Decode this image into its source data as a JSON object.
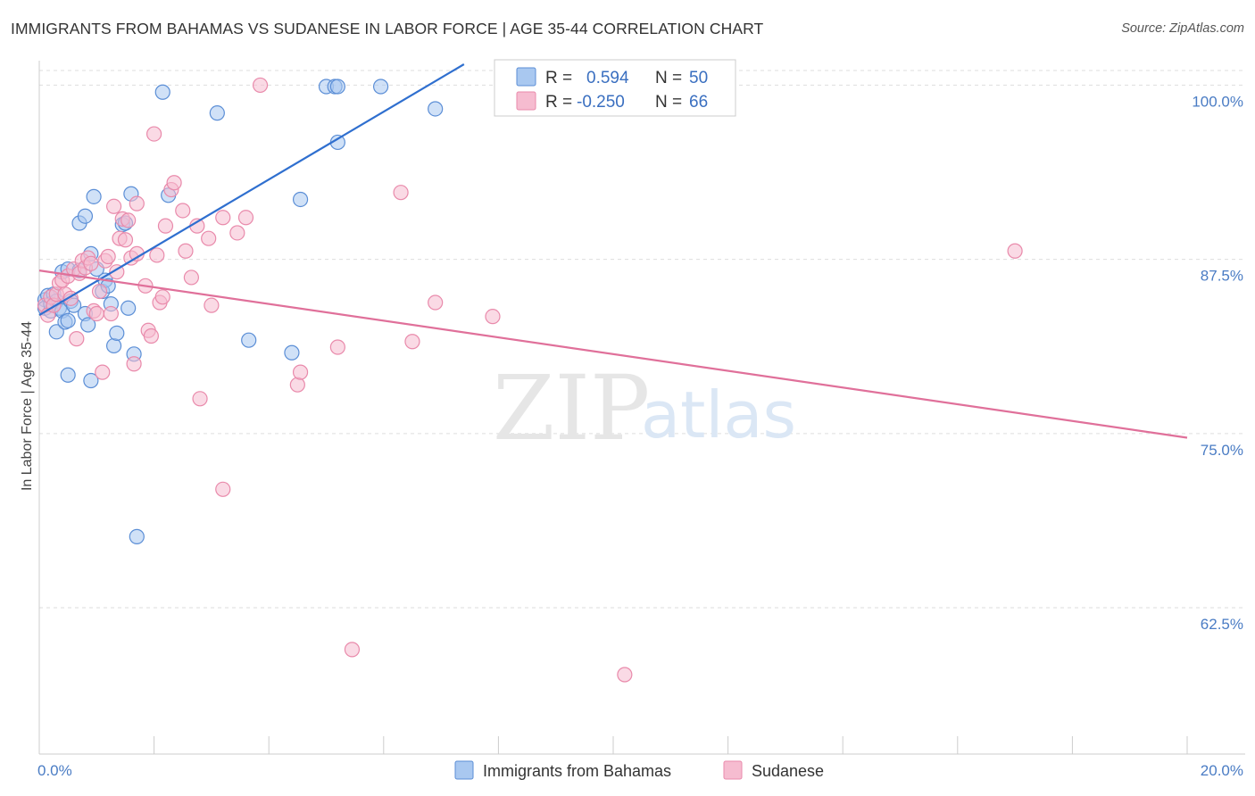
{
  "title": "IMMIGRANTS FROM BAHAMAS VS SUDANESE IN LABOR FORCE | AGE 35-44 CORRELATION CHART",
  "source": "Source: ZipAtlas.com",
  "watermark": {
    "zip": "ZIP",
    "atlas": "atlas"
  },
  "colors": {
    "blue_fill": "#a9c8f0",
    "blue_stroke": "#5b8ed6",
    "blue_line": "#2f6fcf",
    "pink_fill": "#f6bcd0",
    "pink_stroke": "#e98aab",
    "pink_line": "#e0709a",
    "grid": "#dddddd",
    "axis_text": "#4a7cc4"
  },
  "legend": {
    "rows": [
      {
        "r_label": "R =",
        "r_value": "0.594",
        "n_label": "N =",
        "n_value": "50"
      },
      {
        "r_label": "R =",
        "r_value": "-0.250",
        "n_label": "N =",
        "n_value": "66"
      }
    ]
  },
  "chart_data": {
    "type": "scatter",
    "ylabel": "In Labor Force | Age 35-44",
    "xlim": [
      0,
      20
    ],
    "ylim": [
      52,
      101.5
    ],
    "x_tick_labels": [
      "0.0%",
      "20.0%"
    ],
    "y_ticks": [
      62.5,
      75.0,
      87.5,
      100.0
    ],
    "y_tick_labels": [
      "62.5%",
      "75.0%",
      "87.5%",
      "100.0%"
    ],
    "grid": true,
    "legend_position": "top-center",
    "series": [
      {
        "name": "Immigrants from Bahamas",
        "color": "#a9c8f0",
        "trendline": {
          "x": [
            0,
            7.4
          ],
          "y": [
            83.5,
            101.5
          ]
        },
        "points": [
          [
            0.1,
            84.6
          ],
          [
            0.1,
            84.0
          ],
          [
            0.15,
            84.9
          ],
          [
            0.2,
            83.8
          ],
          [
            0.2,
            84.3
          ],
          [
            0.25,
            85.0
          ],
          [
            0.3,
            82.3
          ],
          [
            0.3,
            84.5
          ],
          [
            0.35,
            84.0
          ],
          [
            0.4,
            83.8
          ],
          [
            0.4,
            86.6
          ],
          [
            0.45,
            83.0
          ],
          [
            0.5,
            86.8
          ],
          [
            0.5,
            83.1
          ],
          [
            0.55,
            84.5
          ],
          [
            0.6,
            84.2
          ],
          [
            0.5,
            79.2
          ],
          [
            0.9,
            78.8
          ],
          [
            0.7,
            86.7
          ],
          [
            0.7,
            90.1
          ],
          [
            0.8,
            90.6
          ],
          [
            0.8,
            83.6
          ],
          [
            0.85,
            82.8
          ],
          [
            0.9,
            87.9
          ],
          [
            1.0,
            86.8
          ],
          [
            1.1,
            85.2
          ],
          [
            1.15,
            86.0
          ],
          [
            1.2,
            85.6
          ],
          [
            1.25,
            84.3
          ],
          [
            0.95,
            92.0
          ],
          [
            1.3,
            81.3
          ],
          [
            1.35,
            82.2
          ],
          [
            1.45,
            90.0
          ],
          [
            1.5,
            90.1
          ],
          [
            1.55,
            84.0
          ],
          [
            1.6,
            92.2
          ],
          [
            1.65,
            80.7
          ],
          [
            1.7,
            67.6
          ],
          [
            2.15,
            99.5
          ],
          [
            2.25,
            92.1
          ],
          [
            3.1,
            98.0
          ],
          [
            3.65,
            81.7
          ],
          [
            4.4,
            80.8
          ],
          [
            4.55,
            91.8
          ],
          [
            5.0,
            99.9
          ],
          [
            5.15,
            99.9
          ],
          [
            5.2,
            99.9
          ],
          [
            5.2,
            95.9
          ],
          [
            5.95,
            99.9
          ],
          [
            6.9,
            98.3
          ]
        ]
      },
      {
        "name": "Sudanese",
        "color": "#f6bcd0",
        "trendline": {
          "x": [
            0,
            20
          ],
          "y": [
            86.7,
            74.7
          ]
        },
        "points": [
          [
            0.1,
            84.2
          ],
          [
            0.15,
            83.5
          ],
          [
            0.2,
            84.8
          ],
          [
            0.25,
            84.2
          ],
          [
            0.3,
            85.0
          ],
          [
            0.35,
            85.8
          ],
          [
            0.4,
            86.0
          ],
          [
            0.45,
            85.0
          ],
          [
            0.5,
            86.3
          ],
          [
            0.55,
            84.7
          ],
          [
            0.6,
            86.8
          ],
          [
            0.65,
            81.8
          ],
          [
            0.7,
            86.5
          ],
          [
            0.75,
            87.4
          ],
          [
            0.8,
            86.9
          ],
          [
            0.85,
            87.6
          ],
          [
            0.9,
            87.2
          ],
          [
            0.95,
            83.8
          ],
          [
            1.0,
            83.6
          ],
          [
            1.05,
            85.2
          ],
          [
            1.1,
            79.4
          ],
          [
            1.15,
            87.4
          ],
          [
            1.2,
            87.7
          ],
          [
            1.25,
            83.6
          ],
          [
            1.3,
            91.3
          ],
          [
            1.35,
            86.6
          ],
          [
            1.4,
            89.0
          ],
          [
            1.45,
            90.4
          ],
          [
            1.5,
            88.9
          ],
          [
            1.55,
            90.3
          ],
          [
            1.6,
            87.6
          ],
          [
            1.65,
            80.0
          ],
          [
            1.7,
            87.9
          ],
          [
            1.7,
            91.5
          ],
          [
            1.85,
            85.6
          ],
          [
            1.9,
            82.4
          ],
          [
            1.95,
            82.0
          ],
          [
            2.0,
            96.5
          ],
          [
            2.05,
            87.8
          ],
          [
            2.1,
            84.4
          ],
          [
            2.15,
            84.8
          ],
          [
            2.2,
            89.9
          ],
          [
            2.3,
            92.5
          ],
          [
            2.35,
            93.0
          ],
          [
            2.5,
            91.0
          ],
          [
            2.55,
            88.1
          ],
          [
            2.65,
            86.2
          ],
          [
            2.75,
            89.9
          ],
          [
            2.8,
            77.5
          ],
          [
            2.95,
            89.0
          ],
          [
            3.0,
            84.2
          ],
          [
            3.2,
            71.0
          ],
          [
            3.2,
            90.5
          ],
          [
            3.45,
            89.4
          ],
          [
            3.6,
            90.5
          ],
          [
            3.85,
            100.0
          ],
          [
            4.5,
            78.5
          ],
          [
            4.55,
            79.4
          ],
          [
            5.2,
            81.2
          ],
          [
            5.45,
            59.5
          ],
          [
            6.3,
            92.3
          ],
          [
            6.5,
            81.6
          ],
          [
            6.9,
            84.4
          ],
          [
            7.9,
            83.4
          ],
          [
            10.2,
            57.7
          ],
          [
            17.0,
            88.1
          ]
        ]
      }
    ]
  },
  "bottom_legend": [
    "Immigrants from Bahamas",
    "Sudanese"
  ]
}
